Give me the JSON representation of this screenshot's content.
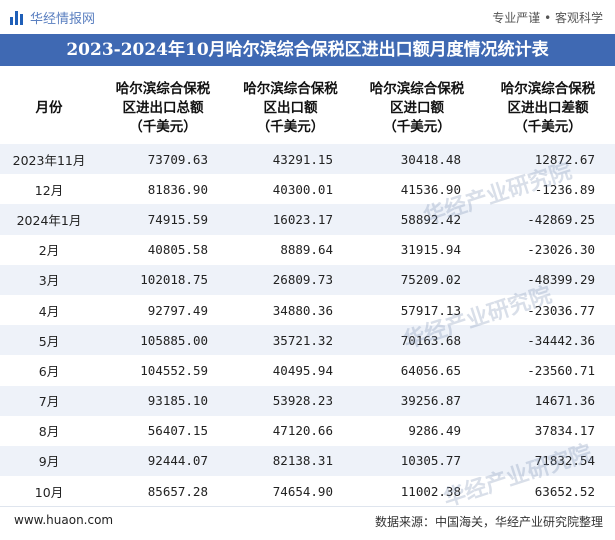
{
  "brand": {
    "logo_text": "华经情报网",
    "slogan": "专业严谨 • 客观科学"
  },
  "title": "2023-2024年10月哈尔滨综合保税区进出口额月度情况统计表",
  "table": {
    "headers": [
      [
        "月份"
      ],
      [
        "哈尔滨综合保税",
        "区进出口总额",
        "（千美元）"
      ],
      [
        "哈尔滨综合保税",
        "区出口额",
        "（千美元）"
      ],
      [
        "哈尔滨综合保税",
        "区进口额",
        "（千美元）"
      ],
      [
        "哈尔滨综合保税",
        "区进出口差额",
        "（千美元）"
      ]
    ],
    "rows": [
      [
        "2023年11月",
        "73709.63",
        "43291.15",
        "30418.48",
        "12872.67"
      ],
      [
        "12月",
        "81836.90",
        "40300.01",
        "41536.90",
        "-1236.89"
      ],
      [
        "2024年1月",
        "74915.59",
        "16023.17",
        "58892.42",
        "-42869.25"
      ],
      [
        "2月",
        "40805.58",
        "8889.64",
        "31915.94",
        "-23026.30"
      ],
      [
        "3月",
        "102018.75",
        "26809.73",
        "75209.02",
        "-48399.29"
      ],
      [
        "4月",
        "92797.49",
        "34880.36",
        "57917.13",
        "-23036.77"
      ],
      [
        "5月",
        "105885.00",
        "35721.32",
        "70163.68",
        "-34442.36"
      ],
      [
        "6月",
        "104552.59",
        "40495.94",
        "64056.65",
        "-23560.71"
      ],
      [
        "7月",
        "93185.10",
        "53928.23",
        "39256.87",
        "14671.36"
      ],
      [
        "8月",
        "56407.15",
        "47120.66",
        "9286.49",
        "37834.17"
      ],
      [
        "9月",
        "92444.07",
        "82138.31",
        "10305.77",
        "71832.54"
      ],
      [
        "10月",
        "85657.28",
        "74654.90",
        "11002.38",
        "63652.52"
      ]
    ]
  },
  "footer": {
    "site": "www.huaon.com",
    "source": "数据来源：中国海关，华经产业研究院整理"
  },
  "watermarks": [
    "华经产业研究院",
    "华经产业研究院",
    "华经产业研究院"
  ],
  "colors": {
    "title_bg": "#3f69b3",
    "stripe": "#eef2f9",
    "brand": "#1f5fb8"
  }
}
